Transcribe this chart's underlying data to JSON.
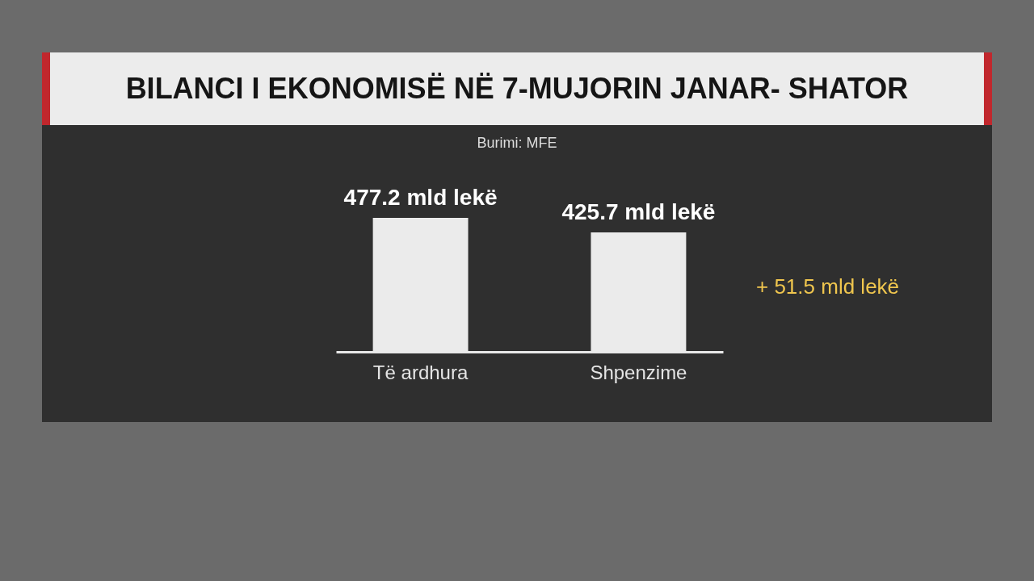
{
  "chart_data": {
    "type": "bar",
    "title": "BILANCI I EKONOMISË NË 7-MUJORIN JANAR- SHATOR",
    "categories": [
      "Të ardhura",
      "Shpenzime"
    ],
    "values": [
      477.2,
      425.7
    ],
    "value_labels": [
      "477.2 mld lekë",
      "425.7 mld lekë"
    ],
    "color": "#ebebeb",
    "tick_labels": "x",
    "annotations": [
      "Burimi: MFE",
      "+ 51.5 mld lekë"
    ]
  }
}
